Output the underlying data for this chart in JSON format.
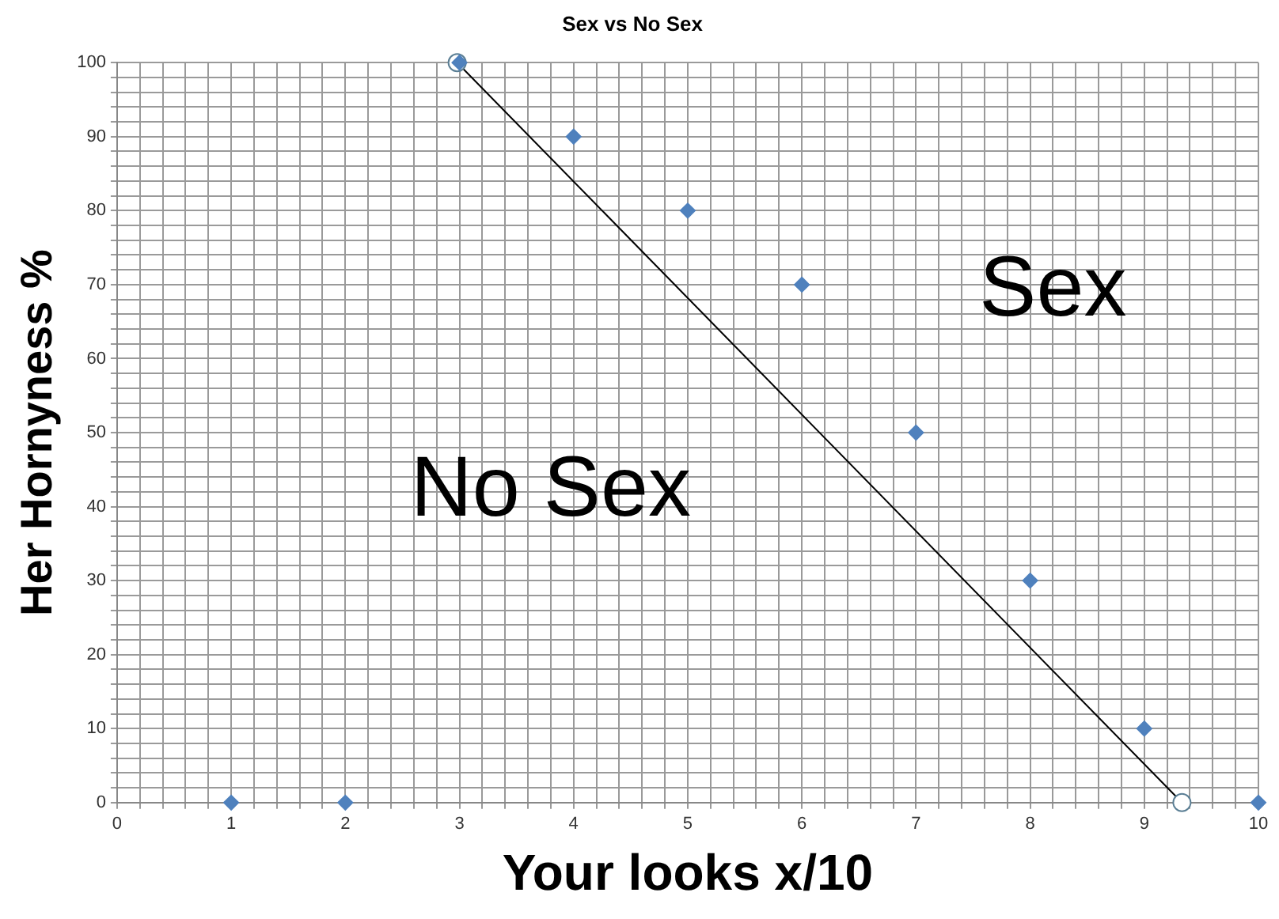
{
  "chart_data": {
    "type": "scatter",
    "title": "Sex vs No Sex",
    "xlabel": "Your looks x/10",
    "ylabel": "Her Hornyness %",
    "series": [
      {
        "type": "scatter",
        "color": "#4f81bd",
        "marker": "diamond",
        "x": [
          1,
          2,
          3,
          4,
          5,
          6,
          7,
          8,
          9,
          10
        ],
        "values": [
          0,
          0,
          100,
          90,
          80,
          70,
          50,
          30,
          10,
          0
        ]
      },
      {
        "type": "line",
        "color": "#000000",
        "marker": "circle",
        "x": [
          2.98,
          9.33
        ],
        "values": [
          100,
          0
        ]
      }
    ],
    "annotations": [
      "Sex",
      "No Sex"
    ],
    "xlim": [
      0,
      10
    ],
    "ylim": [
      0,
      100
    ],
    "xticks": [
      0,
      {
        "value": 0.2,
        "label": null
      },
      {
        "value": 0.4,
        "label": null
      },
      {
        "value": 0.6,
        "label": null
      },
      {
        "value": 0.8,
        "label": null
      },
      1,
      {
        "value": 1.2,
        "label": null
      },
      {
        "value": 1.4,
        "label": null
      },
      {
        "value": 1.6,
        "label": null
      },
      {
        "value": 1.8,
        "label": null
      },
      2,
      {
        "value": 2.2,
        "label": null
      },
      {
        "value": 2.4,
        "label": null
      },
      {
        "value": 2.6,
        "label": null
      },
      {
        "value": 2.8,
        "label": null
      },
      3,
      {
        "value": 3.2,
        "label": null
      },
      {
        "value": 3.4,
        "label": null
      },
      {
        "value": 3.6,
        "label": null
      },
      {
        "value": 3.8,
        "label": null
      },
      4,
      {
        "value": 4.2,
        "label": null
      },
      {
        "value": 4.4,
        "label": null
      },
      {
        "value": 4.6,
        "label": null
      },
      {
        "value": 4.8,
        "label": null
      },
      5,
      {
        "value": 5.2,
        "label": null
      },
      {
        "value": 5.4,
        "label": null
      },
      {
        "value": 5.6,
        "label": null
      },
      {
        "value": 5.8,
        "label": null
      },
      6,
      {
        "value": 6.2,
        "label": null
      },
      {
        "value": 6.4,
        "label": null
      },
      {
        "value": 6.6,
        "label": null
      },
      {
        "value": 6.8,
        "label": null
      },
      7,
      {
        "value": 7.2,
        "label": null
      },
      {
        "value": 7.4,
        "label": null
      },
      {
        "value": 7.6,
        "label": null
      },
      {
        "value": 7.8,
        "label": null
      },
      8,
      {
        "value": 8.2,
        "label": null
      },
      {
        "value": 8.4,
        "label": null
      },
      {
        "value": 8.6,
        "label": null
      },
      {
        "value": 8.8,
        "label": null
      },
      9,
      {
        "value": 9.2,
        "label": null
      },
      {
        "value": 9.4,
        "label": null
      },
      {
        "value": 9.6,
        "label": null
      },
      {
        "value": 9.8,
        "label": null
      },
      10
    ],
    "yticks": [
      0,
      {
        "value": 2,
        "label": null
      },
      {
        "value": 4,
        "label": null
      },
      {
        "value": 6,
        "label": null
      },
      {
        "value": 8,
        "label": null
      },
      10,
      {
        "value": 12,
        "label": null
      },
      {
        "value": 14,
        "label": null
      },
      {
        "value": 16,
        "label": null
      },
      {
        "value": 18,
        "label": null
      },
      20,
      {
        "value": 22,
        "label": null
      },
      {
        "value": 24,
        "label": null
      },
      {
        "value": 26,
        "label": null
      },
      {
        "value": 28,
        "label": null
      },
      30,
      {
        "value": 32,
        "label": null
      },
      {
        "value": 34,
        "label": null
      },
      {
        "value": 36,
        "label": null
      },
      {
        "value": 38,
        "label": null
      },
      40,
      {
        "value": 42,
        "label": null
      },
      {
        "value": 44,
        "label": null
      },
      {
        "value": 46,
        "label": null
      },
      {
        "value": 48,
        "label": null
      },
      50,
      {
        "value": 52,
        "label": null
      },
      {
        "value": 54,
        "label": null
      },
      {
        "value": 56,
        "label": null
      },
      {
        "value": 58,
        "label": null
      },
      60,
      {
        "value": 62,
        "label": null
      },
      {
        "value": 64,
        "label": null
      },
      {
        "value": 66,
        "label": null
      },
      {
        "value": 68,
        "label": null
      },
      70,
      {
        "value": 72,
        "label": null
      },
      {
        "value": 74,
        "label": null
      },
      {
        "value": 76,
        "label": null
      },
      {
        "value": 78,
        "label": null
      },
      80,
      {
        "value": 82,
        "label": null
      },
      {
        "value": 84,
        "label": null
      },
      {
        "value": 86,
        "label": null
      },
      {
        "value": 88,
        "label": null
      },
      90,
      {
        "value": 92,
        "label": null
      },
      {
        "value": 94,
        "label": null
      },
      {
        "value": 96,
        "label": null
      },
      {
        "value": 98,
        "label": null
      },
      100
    ],
    "grid": true,
    "legend": false
  }
}
